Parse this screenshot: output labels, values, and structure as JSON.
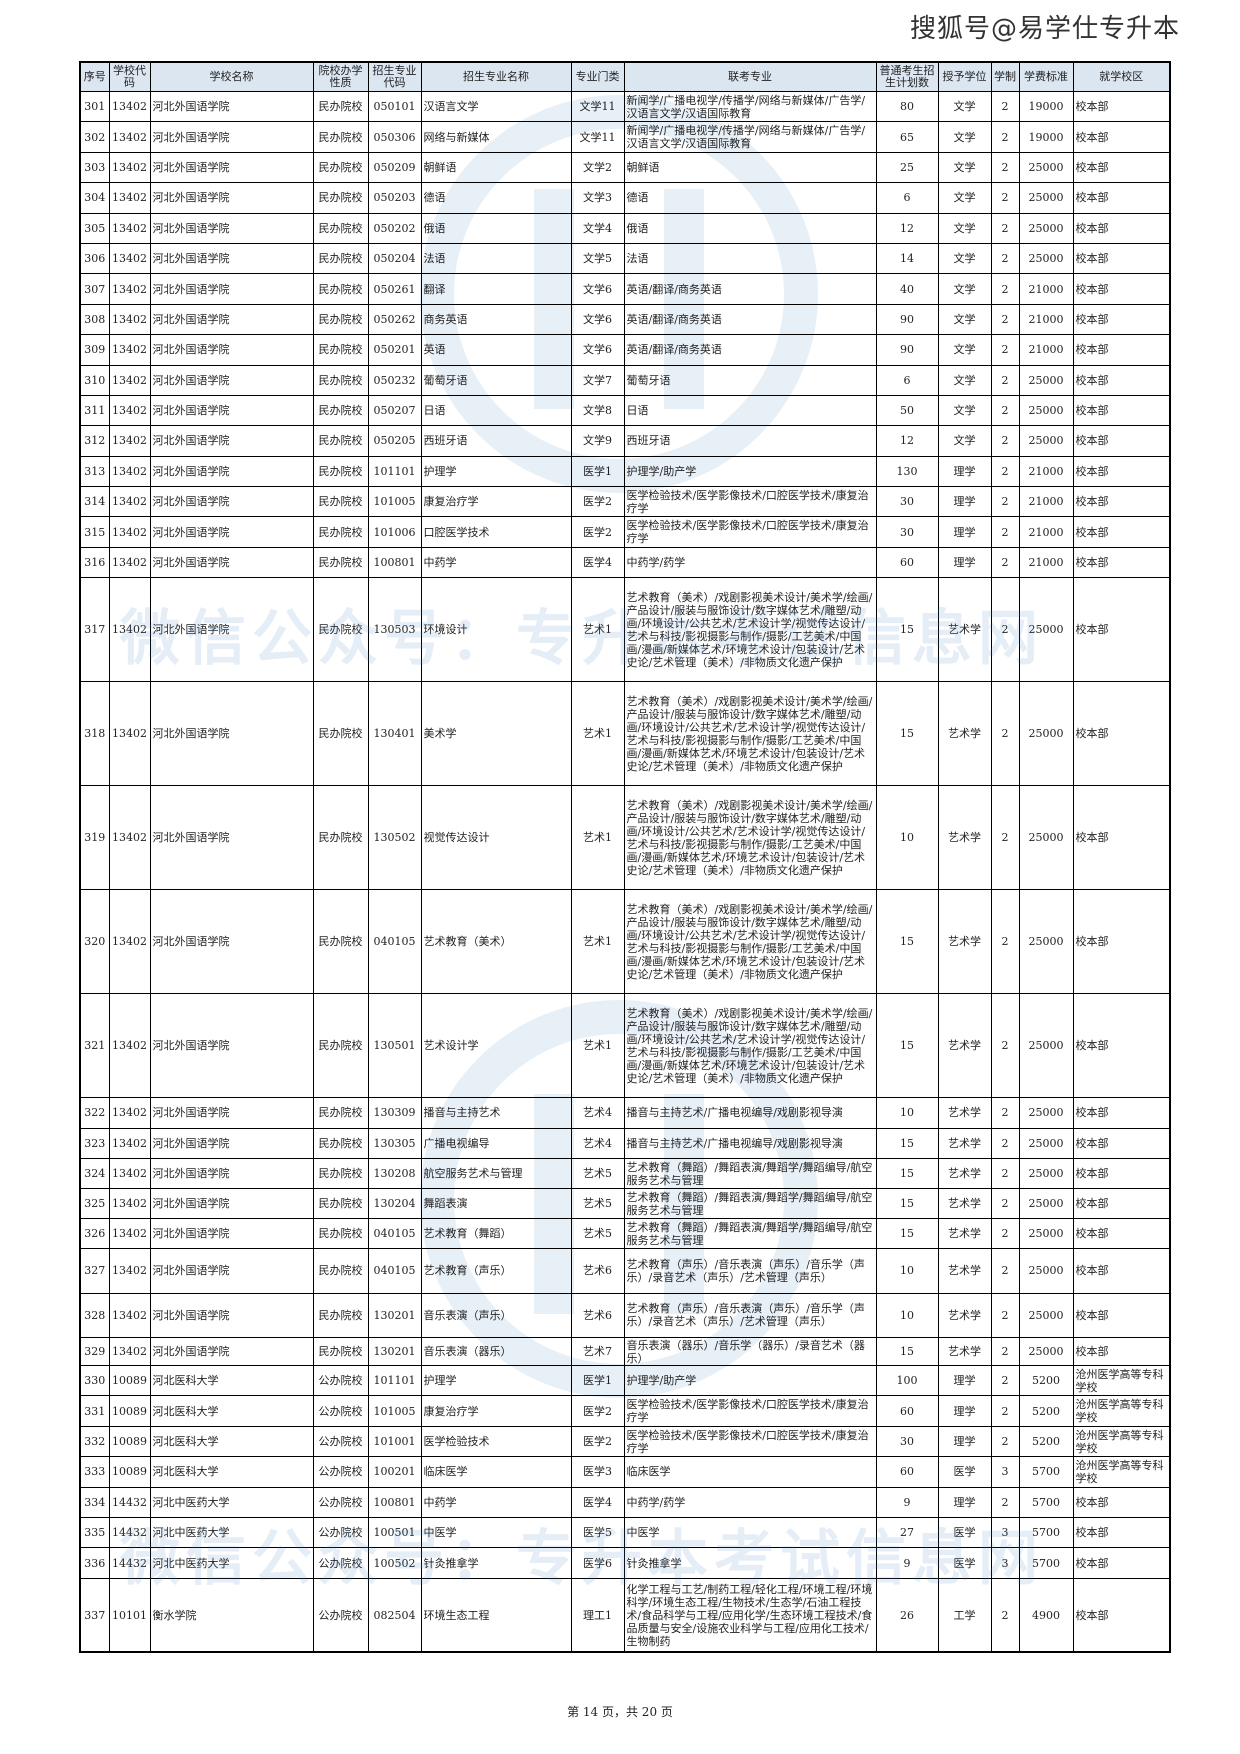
{
  "brand": "搜狐号@易学仕专升本",
  "watermark": "微信公众号：专升本考试信息网",
  "colors": {
    "header_bg": "#dce6f1",
    "watermark": "#4682be"
  },
  "headers": [
    "序号",
    "学校代码",
    "学校名称",
    "院校办学性质",
    "招生专业代码",
    "招生专业名称",
    "专业门类",
    "联考专业",
    "普通考生招生计划数",
    "授予学位",
    "学制",
    "学费标准",
    "就学校区"
  ],
  "rows": [
    [
      "301",
      "13402",
      "河北外国语学院",
      "民办院校",
      "050101",
      "汉语言文学",
      "文学11",
      "新闻学/广播电视学/传播学/网络与新媒体/广告学/汉语言文学/汉语国际教育",
      "80",
      "文学",
      "2",
      "19000",
      "校本部"
    ],
    [
      "302",
      "13402",
      "河北外国语学院",
      "民办院校",
      "050306",
      "网络与新媒体",
      "文学11",
      "新闻学/广播电视学/传播学/网络与新媒体/广告学/汉语言文学/汉语国际教育",
      "65",
      "文学",
      "2",
      "19000",
      "校本部"
    ],
    [
      "303",
      "13402",
      "河北外国语学院",
      "民办院校",
      "050209",
      "朝鲜语",
      "文学2",
      "朝鲜语",
      "25",
      "文学",
      "2",
      "25000",
      "校本部"
    ],
    [
      "304",
      "13402",
      "河北外国语学院",
      "民办院校",
      "050203",
      "德语",
      "文学3",
      "德语",
      "6",
      "文学",
      "2",
      "25000",
      "校本部"
    ],
    [
      "305",
      "13402",
      "河北外国语学院",
      "民办院校",
      "050202",
      "俄语",
      "文学4",
      "俄语",
      "12",
      "文学",
      "2",
      "25000",
      "校本部"
    ],
    [
      "306",
      "13402",
      "河北外国语学院",
      "民办院校",
      "050204",
      "法语",
      "文学5",
      "法语",
      "14",
      "文学",
      "2",
      "25000",
      "校本部"
    ],
    [
      "307",
      "13402",
      "河北外国语学院",
      "民办院校",
      "050261",
      "翻译",
      "文学6",
      "英语/翻译/商务英语",
      "40",
      "文学",
      "2",
      "21000",
      "校本部"
    ],
    [
      "308",
      "13402",
      "河北外国语学院",
      "民办院校",
      "050262",
      "商务英语",
      "文学6",
      "英语/翻译/商务英语",
      "90",
      "文学",
      "2",
      "21000",
      "校本部"
    ],
    [
      "309",
      "13402",
      "河北外国语学院",
      "民办院校",
      "050201",
      "英语",
      "文学6",
      "英语/翻译/商务英语",
      "90",
      "文学",
      "2",
      "21000",
      "校本部"
    ],
    [
      "310",
      "13402",
      "河北外国语学院",
      "民办院校",
      "050232",
      "葡萄牙语",
      "文学7",
      "葡萄牙语",
      "6",
      "文学",
      "2",
      "25000",
      "校本部"
    ],
    [
      "311",
      "13402",
      "河北外国语学院",
      "民办院校",
      "050207",
      "日语",
      "文学8",
      "日语",
      "50",
      "文学",
      "2",
      "25000",
      "校本部"
    ],
    [
      "312",
      "13402",
      "河北外国语学院",
      "民办院校",
      "050205",
      "西班牙语",
      "文学9",
      "西班牙语",
      "12",
      "文学",
      "2",
      "25000",
      "校本部"
    ],
    [
      "313",
      "13402",
      "河北外国语学院",
      "民办院校",
      "101101",
      "护理学",
      "医学1",
      "护理学/助产学",
      "130",
      "理学",
      "2",
      "21000",
      "校本部"
    ],
    [
      "314",
      "13402",
      "河北外国语学院",
      "民办院校",
      "101005",
      "康复治疗学",
      "医学2",
      "医学检验技术/医学影像技术/口腔医学技术/康复治疗学",
      "30",
      "理学",
      "2",
      "21000",
      "校本部"
    ],
    [
      "315",
      "13402",
      "河北外国语学院",
      "民办院校",
      "101006",
      "口腔医学技术",
      "医学2",
      "医学检验技术/医学影像技术/口腔医学技术/康复治疗学",
      "30",
      "理学",
      "2",
      "21000",
      "校本部"
    ],
    [
      "316",
      "13402",
      "河北外国语学院",
      "民办院校",
      "100801",
      "中药学",
      "医学4",
      "中药学/药学",
      "60",
      "理学",
      "2",
      "21000",
      "校本部"
    ],
    [
      "317",
      "13402",
      "河北外国语学院",
      "民办院校",
      "130503",
      "环境设计",
      "艺术1",
      "艺术教育（美术）/戏剧影视美术设计/美术学/绘画/产品设计/服装与服饰设计/数字媒体艺术/雕塑/动画/环境设计/公共艺术/艺术设计学/视觉传达设计/艺术与科技/影视摄影与制作/摄影/工艺美术/中国画/漫画/新媒体艺术/环境艺术设计/包装设计/艺术史论/艺术管理（美术）/非物质文化遗产保护",
      "15",
      "艺术学",
      "2",
      "25000",
      "校本部"
    ],
    [
      "318",
      "13402",
      "河北外国语学院",
      "民办院校",
      "130401",
      "美术学",
      "艺术1",
      "艺术教育（美术）/戏剧影视美术设计/美术学/绘画/产品设计/服装与服饰设计/数字媒体艺术/雕塑/动画/环境设计/公共艺术/艺术设计学/视觉传达设计/艺术与科技/影视摄影与制作/摄影/工艺美术/中国画/漫画/新媒体艺术/环境艺术设计/包装设计/艺术史论/艺术管理（美术）/非物质文化遗产保护",
      "15",
      "艺术学",
      "2",
      "25000",
      "校本部"
    ],
    [
      "319",
      "13402",
      "河北外国语学院",
      "民办院校",
      "130502",
      "视觉传达设计",
      "艺术1",
      "艺术教育（美术）/戏剧影视美术设计/美术学/绘画/产品设计/服装与服饰设计/数字媒体艺术/雕塑/动画/环境设计/公共艺术/艺术设计学/视觉传达设计/艺术与科技/影视摄影与制作/摄影/工艺美术/中国画/漫画/新媒体艺术/环境艺术设计/包装设计/艺术史论/艺术管理（美术）/非物质文化遗产保护",
      "10",
      "艺术学",
      "2",
      "25000",
      "校本部"
    ],
    [
      "320",
      "13402",
      "河北外国语学院",
      "民办院校",
      "040105",
      "艺术教育（美术）",
      "艺术1",
      "艺术教育（美术）/戏剧影视美术设计/美术学/绘画/产品设计/服装与服饰设计/数字媒体艺术/雕塑/动画/环境设计/公共艺术/艺术设计学/视觉传达设计/艺术与科技/影视摄影与制作/摄影/工艺美术/中国画/漫画/新媒体艺术/环境艺术设计/包装设计/艺术史论/艺术管理（美术）/非物质文化遗产保护",
      "15",
      "艺术学",
      "2",
      "25000",
      "校本部"
    ],
    [
      "321",
      "13402",
      "河北外国语学院",
      "民办院校",
      "130501",
      "艺术设计学",
      "艺术1",
      "艺术教育（美术）/戏剧影视美术设计/美术学/绘画/产品设计/服装与服饰设计/数字媒体艺术/雕塑/动画/环境设计/公共艺术/艺术设计学/视觉传达设计/艺术与科技/影视摄影与制作/摄影/工艺美术/中国画/漫画/新媒体艺术/环境艺术设计/包装设计/艺术史论/艺术管理（美术）/非物质文化遗产保护",
      "15",
      "艺术学",
      "2",
      "25000",
      "校本部"
    ],
    [
      "322",
      "13402",
      "河北外国语学院",
      "民办院校",
      "130309",
      "播音与主持艺术",
      "艺术4",
      "播音与主持艺术/广播电视编导/戏剧影视导演",
      "10",
      "艺术学",
      "2",
      "25000",
      "校本部"
    ],
    [
      "323",
      "13402",
      "河北外国语学院",
      "民办院校",
      "130305",
      "广播电视编导",
      "艺术4",
      "播音与主持艺术/广播电视编导/戏剧影视导演",
      "15",
      "艺术学",
      "2",
      "25000",
      "校本部"
    ],
    [
      "324",
      "13402",
      "河北外国语学院",
      "民办院校",
      "130208",
      "航空服务艺术与管理",
      "艺术5",
      "艺术教育（舞蹈）/舞蹈表演/舞蹈学/舞蹈编导/航空服务艺术与管理",
      "15",
      "艺术学",
      "2",
      "25000",
      "校本部"
    ],
    [
      "325",
      "13402",
      "河北外国语学院",
      "民办院校",
      "130204",
      "舞蹈表演",
      "艺术5",
      "艺术教育（舞蹈）/舞蹈表演/舞蹈学/舞蹈编导/航空服务艺术与管理",
      "15",
      "艺术学",
      "2",
      "25000",
      "校本部"
    ],
    [
      "326",
      "13402",
      "河北外国语学院",
      "民办院校",
      "040105",
      "艺术教育（舞蹈）",
      "艺术5",
      "艺术教育（舞蹈）/舞蹈表演/舞蹈学/舞蹈编导/航空服务艺术与管理",
      "15",
      "艺术学",
      "2",
      "25000",
      "校本部"
    ],
    [
      "327",
      "13402",
      "河北外国语学院",
      "民办院校",
      "040105",
      "艺术教育（声乐）",
      "艺术6",
      "艺术教育（声乐）/音乐表演（声乐）/音乐学（声乐）/录音艺术（声乐）/艺术管理（声乐）",
      "10",
      "艺术学",
      "2",
      "25000",
      "校本部"
    ],
    [
      "328",
      "13402",
      "河北外国语学院",
      "民办院校",
      "130201",
      "音乐表演（声乐）",
      "艺术6",
      "艺术教育（声乐）/音乐表演（声乐）/音乐学（声乐）/录音艺术（声乐）/艺术管理（声乐）",
      "10",
      "艺术学",
      "2",
      "25000",
      "校本部"
    ],
    [
      "329",
      "13402",
      "河北外国语学院",
      "民办院校",
      "130201",
      "音乐表演（器乐）",
      "艺术7",
      "音乐表演（器乐）/音乐学（器乐）/录音艺术（器乐）",
      "15",
      "艺术学",
      "2",
      "25000",
      "校本部"
    ],
    [
      "330",
      "10089",
      "河北医科大学",
      "公办院校",
      "101101",
      "护理学",
      "医学1",
      "护理学/助产学",
      "100",
      "理学",
      "2",
      "5200",
      "沧州医学高等专科学校"
    ],
    [
      "331",
      "10089",
      "河北医科大学",
      "公办院校",
      "101005",
      "康复治疗学",
      "医学2",
      "医学检验技术/医学影像技术/口腔医学技术/康复治疗学",
      "60",
      "理学",
      "2",
      "5200",
      "沧州医学高等专科学校"
    ],
    [
      "332",
      "10089",
      "河北医科大学",
      "公办院校",
      "101001",
      "医学检验技术",
      "医学2",
      "医学检验技术/医学影像技术/口腔医学技术/康复治疗学",
      "30",
      "理学",
      "2",
      "5200",
      "沧州医学高等专科学校"
    ],
    [
      "333",
      "10089",
      "河北医科大学",
      "公办院校",
      "100201",
      "临床医学",
      "医学3",
      "临床医学",
      "60",
      "医学",
      "3",
      "5700",
      "沧州医学高等专科学校"
    ],
    [
      "334",
      "14432",
      "河北中医药大学",
      "公办院校",
      "100801",
      "中药学",
      "医学4",
      "中药学/药学",
      "9",
      "理学",
      "2",
      "5700",
      "校本部"
    ],
    [
      "335",
      "14432",
      "河北中医药大学",
      "公办院校",
      "100501",
      "中医学",
      "医学5",
      "中医学",
      "27",
      "医学",
      "3",
      "5700",
      "校本部"
    ],
    [
      "336",
      "14432",
      "河北中医药大学",
      "公办院校",
      "100502",
      "针灸推拿学",
      "医学6",
      "针灸推拿学",
      "9",
      "医学",
      "3",
      "5700",
      "校本部"
    ],
    [
      "337",
      "10101",
      "衡水学院",
      "公办院校",
      "082504",
      "环境生态工程",
      "理工1",
      "化学工程与工艺/制药工程/轻化工程/环境工程/环境科学/环境生态工程/生物技术/生态学/石油工程技术/食品科学与工程/应用化学/生态环境工程技术/食品质量与安全/设施农业科学与工程/应用化工技术/生物制药",
      "26",
      "工学",
      "2",
      "4900",
      "校本部"
    ]
  ],
  "footer": "第 14 页，共 20 页"
}
